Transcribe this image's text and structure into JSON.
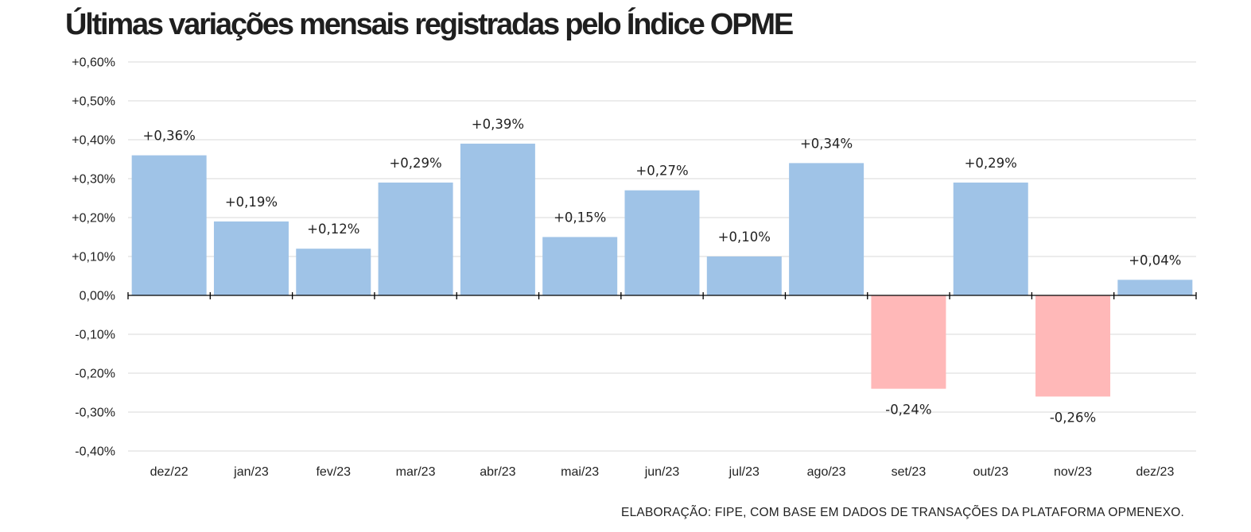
{
  "chart_data": {
    "type": "bar",
    "title": "Últimas variações mensais registradas pelo Índice OPME",
    "categories": [
      "dez/22",
      "jan/23",
      "fev/23",
      "mar/23",
      "abr/23",
      "mai/23",
      "jun/23",
      "jul/23",
      "ago/23",
      "set/23",
      "out/23",
      "nov/23",
      "dez/23"
    ],
    "values": [
      0.36,
      0.19,
      0.12,
      0.29,
      0.39,
      0.15,
      0.27,
      0.1,
      0.34,
      -0.24,
      0.29,
      -0.26,
      0.04
    ],
    "value_labels": [
      "+0,36%",
      "+0,19%",
      "+0,12%",
      "+0,29%",
      "+0,39%",
      "+0,15%",
      "+0,27%",
      "+0,10%",
      "+0,34%",
      "-0,24%",
      "+0,29%",
      "-0,26%",
      "+0,04%"
    ],
    "ylim": [
      -0.4,
      0.6
    ],
    "yticks": [
      0.6,
      0.5,
      0.4,
      0.3,
      0.2,
      0.1,
      0.0,
      -0.1,
      -0.2,
      -0.3,
      -0.4
    ],
    "ytick_labels": [
      "+0,60%",
      "+0,50%",
      "+0,40%",
      "+0,30%",
      "+0,20%",
      "+0,10%",
      "0,00%",
      "-0,10%",
      "-0,20%",
      "-0,30%",
      "-0,40%"
    ],
    "xlabel": "",
    "ylabel": "",
    "grid": true,
    "legend": "none",
    "colors": {
      "positive": "#9fc3e7",
      "negative": "#ffb8b8",
      "grid": "#d9d9d9",
      "axis": "#000000"
    }
  },
  "footer": {
    "source": "ELABORAÇÃO: FIPE, COM BASE EM DADOS DE TRANSAÇÕES DA PLATAFORMA OPMENEXO."
  }
}
